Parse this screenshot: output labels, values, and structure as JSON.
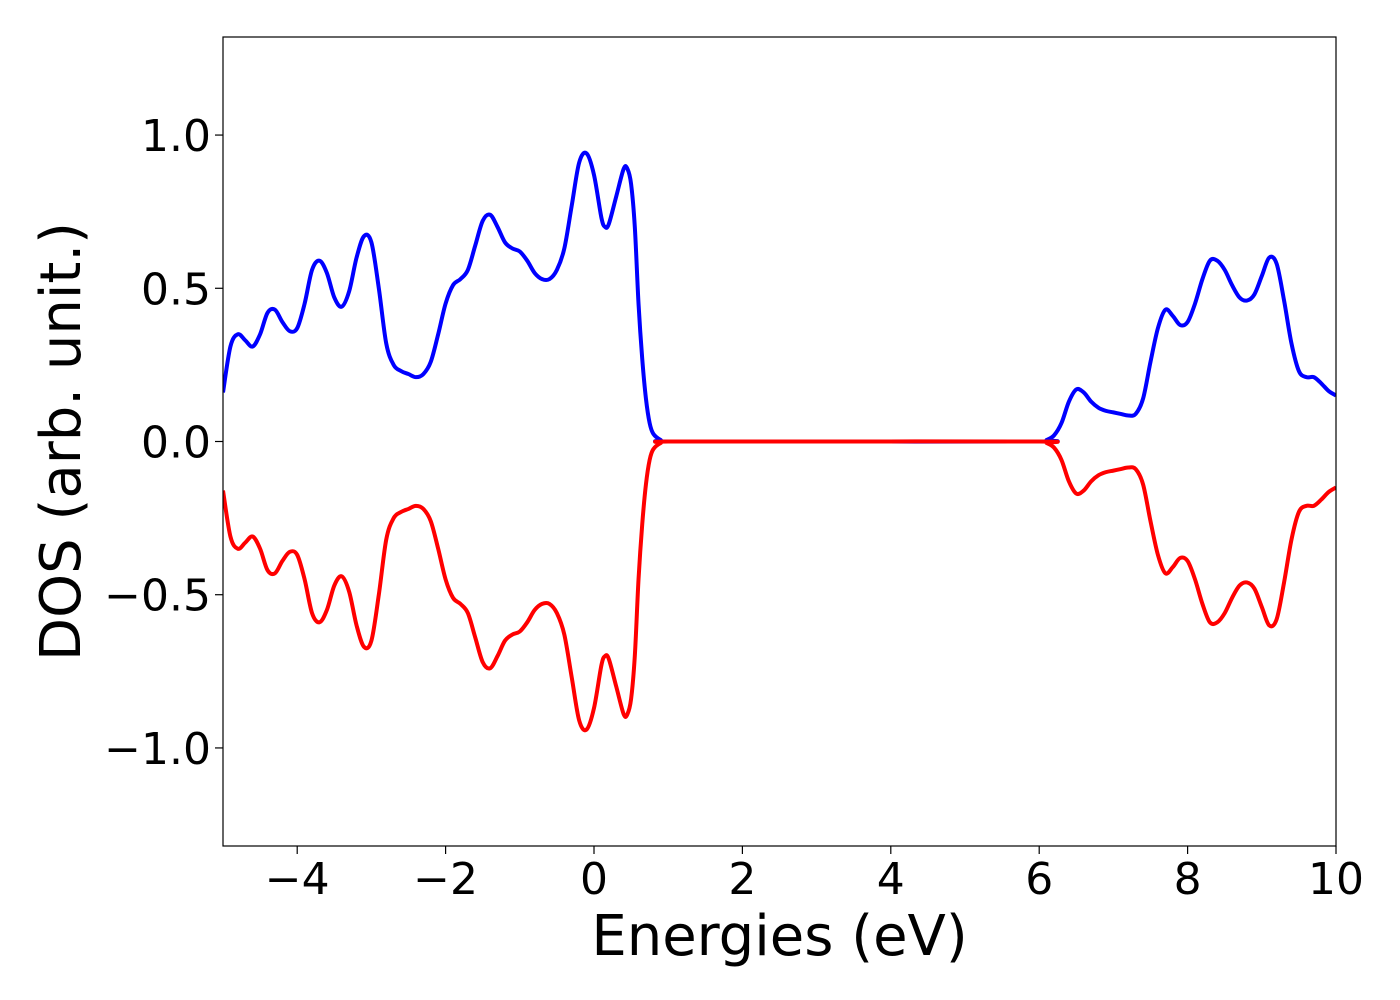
{
  "chart_data": {
    "type": "line",
    "title": "",
    "xlabel": "Energies (eV)",
    "ylabel": "DOS (arb. unit.)",
    "xlim": [
      -5,
      10
    ],
    "ylim": [
      -1.32,
      1.32
    ],
    "x_ticks": [
      -4,
      -2,
      0,
      2,
      4,
      6,
      8,
      10
    ],
    "x_tick_labels": [
      "−4",
      "−2",
      "0",
      "2",
      "4",
      "6",
      "8",
      "10"
    ],
    "y_ticks": [
      1.0,
      0.5,
      0.0,
      -0.5,
      -1.0
    ],
    "y_tick_labels": [
      "1.0",
      "0.5",
      "0.0",
      "−0.5",
      "−1.0"
    ],
    "grid": false,
    "legend": "none",
    "series": [
      {
        "color": "#0000ff",
        "points": [
          [
            -5.0,
            0.16
          ],
          [
            -4.9,
            0.31
          ],
          [
            -4.8,
            0.35
          ],
          [
            -4.7,
            0.33
          ],
          [
            -4.6,
            0.31
          ],
          [
            -4.5,
            0.35
          ],
          [
            -4.4,
            0.42
          ],
          [
            -4.3,
            0.43
          ],
          [
            -4.2,
            0.39
          ],
          [
            -4.1,
            0.36
          ],
          [
            -4.0,
            0.37
          ],
          [
            -3.9,
            0.45
          ],
          [
            -3.8,
            0.56
          ],
          [
            -3.7,
            0.59
          ],
          [
            -3.6,
            0.55
          ],
          [
            -3.5,
            0.47
          ],
          [
            -3.4,
            0.44
          ],
          [
            -3.3,
            0.49
          ],
          [
            -3.2,
            0.6
          ],
          [
            -3.1,
            0.67
          ],
          [
            -3.0,
            0.65
          ],
          [
            -2.9,
            0.5
          ],
          [
            -2.8,
            0.32
          ],
          [
            -2.7,
            0.25
          ],
          [
            -2.6,
            0.23
          ],
          [
            -2.5,
            0.22
          ],
          [
            -2.4,
            0.21
          ],
          [
            -2.3,
            0.22
          ],
          [
            -2.2,
            0.26
          ],
          [
            -2.1,
            0.35
          ],
          [
            -2.0,
            0.45
          ],
          [
            -1.9,
            0.51
          ],
          [
            -1.8,
            0.53
          ],
          [
            -1.7,
            0.56
          ],
          [
            -1.6,
            0.64
          ],
          [
            -1.5,
            0.72
          ],
          [
            -1.4,
            0.74
          ],
          [
            -1.3,
            0.7
          ],
          [
            -1.2,
            0.65
          ],
          [
            -1.1,
            0.63
          ],
          [
            -1.0,
            0.62
          ],
          [
            -0.9,
            0.59
          ],
          [
            -0.8,
            0.55
          ],
          [
            -0.7,
            0.53
          ],
          [
            -0.6,
            0.53
          ],
          [
            -0.5,
            0.56
          ],
          [
            -0.4,
            0.63
          ],
          [
            -0.3,
            0.77
          ],
          [
            -0.2,
            0.91
          ],
          [
            -0.1,
            0.94
          ],
          [
            0.0,
            0.87
          ],
          [
            0.1,
            0.73
          ],
          [
            0.15,
            0.7
          ],
          [
            0.2,
            0.71
          ],
          [
            0.3,
            0.8
          ],
          [
            0.4,
            0.89
          ],
          [
            0.45,
            0.89
          ],
          [
            0.5,
            0.84
          ],
          [
            0.55,
            0.7
          ],
          [
            0.6,
            0.45
          ],
          [
            0.65,
            0.27
          ],
          [
            0.7,
            0.14
          ],
          [
            0.75,
            0.06
          ],
          [
            0.8,
            0.025
          ],
          [
            0.9,
            0.005
          ],
          [
            1.0,
            0.0
          ],
          [
            3.0,
            0.0
          ],
          [
            6.0,
            0.0
          ],
          [
            6.1,
            0.005
          ],
          [
            6.2,
            0.02
          ],
          [
            6.3,
            0.06
          ],
          [
            6.4,
            0.13
          ],
          [
            6.5,
            0.17
          ],
          [
            6.6,
            0.16
          ],
          [
            6.7,
            0.13
          ],
          [
            6.8,
            0.11
          ],
          [
            6.9,
            0.1
          ],
          [
            7.0,
            0.095
          ],
          [
            7.1,
            0.09
          ],
          [
            7.2,
            0.085
          ],
          [
            7.3,
            0.09
          ],
          [
            7.4,
            0.14
          ],
          [
            7.5,
            0.26
          ],
          [
            7.6,
            0.37
          ],
          [
            7.7,
            0.43
          ],
          [
            7.8,
            0.41
          ],
          [
            7.9,
            0.38
          ],
          [
            8.0,
            0.39
          ],
          [
            8.1,
            0.45
          ],
          [
            8.2,
            0.53
          ],
          [
            8.3,
            0.59
          ],
          [
            8.4,
            0.59
          ],
          [
            8.5,
            0.56
          ],
          [
            8.6,
            0.51
          ],
          [
            8.7,
            0.47
          ],
          [
            8.8,
            0.46
          ],
          [
            8.9,
            0.48
          ],
          [
            9.0,
            0.54
          ],
          [
            9.1,
            0.6
          ],
          [
            9.2,
            0.58
          ],
          [
            9.3,
            0.46
          ],
          [
            9.4,
            0.32
          ],
          [
            9.5,
            0.23
          ],
          [
            9.6,
            0.21
          ],
          [
            9.7,
            0.21
          ],
          [
            9.8,
            0.19
          ],
          [
            9.9,
            0.165
          ],
          [
            10.0,
            0.15
          ]
        ]
      },
      {
        "color": "#ff0000",
        "points": [
          [
            -5.0,
            -0.16
          ],
          [
            -4.9,
            -0.31
          ],
          [
            -4.8,
            -0.35
          ],
          [
            -4.7,
            -0.33
          ],
          [
            -4.6,
            -0.31
          ],
          [
            -4.5,
            -0.35
          ],
          [
            -4.4,
            -0.42
          ],
          [
            -4.3,
            -0.43
          ],
          [
            -4.2,
            -0.39
          ],
          [
            -4.1,
            -0.36
          ],
          [
            -4.0,
            -0.37
          ],
          [
            -3.9,
            -0.45
          ],
          [
            -3.8,
            -0.56
          ],
          [
            -3.7,
            -0.59
          ],
          [
            -3.6,
            -0.55
          ],
          [
            -3.5,
            -0.47
          ],
          [
            -3.4,
            -0.44
          ],
          [
            -3.3,
            -0.49
          ],
          [
            -3.2,
            -0.6
          ],
          [
            -3.1,
            -0.67
          ],
          [
            -3.0,
            -0.65
          ],
          [
            -2.9,
            -0.5
          ],
          [
            -2.8,
            -0.32
          ],
          [
            -2.7,
            -0.25
          ],
          [
            -2.6,
            -0.23
          ],
          [
            -2.5,
            -0.22
          ],
          [
            -2.4,
            -0.21
          ],
          [
            -2.3,
            -0.22
          ],
          [
            -2.2,
            -0.26
          ],
          [
            -2.1,
            -0.35
          ],
          [
            -2.0,
            -0.45
          ],
          [
            -1.9,
            -0.51
          ],
          [
            -1.8,
            -0.53
          ],
          [
            -1.7,
            -0.56
          ],
          [
            -1.6,
            -0.64
          ],
          [
            -1.5,
            -0.72
          ],
          [
            -1.4,
            -0.74
          ],
          [
            -1.3,
            -0.7
          ],
          [
            -1.2,
            -0.65
          ],
          [
            -1.1,
            -0.63
          ],
          [
            -1.0,
            -0.62
          ],
          [
            -0.9,
            -0.59
          ],
          [
            -0.8,
            -0.55
          ],
          [
            -0.7,
            -0.53
          ],
          [
            -0.6,
            -0.53
          ],
          [
            -0.5,
            -0.56
          ],
          [
            -0.4,
            -0.63
          ],
          [
            -0.3,
            -0.77
          ],
          [
            -0.2,
            -0.91
          ],
          [
            -0.1,
            -0.94
          ],
          [
            0.0,
            -0.87
          ],
          [
            0.1,
            -0.73
          ],
          [
            0.15,
            -0.7
          ],
          [
            0.2,
            -0.71
          ],
          [
            0.3,
            -0.8
          ],
          [
            0.4,
            -0.89
          ],
          [
            0.45,
            -0.89
          ],
          [
            0.5,
            -0.84
          ],
          [
            0.55,
            -0.7
          ],
          [
            0.6,
            -0.45
          ],
          [
            0.65,
            -0.27
          ],
          [
            0.7,
            -0.14
          ],
          [
            0.75,
            -0.06
          ],
          [
            0.8,
            -0.025
          ],
          [
            0.9,
            -0.005
          ],
          [
            1.0,
            0.0
          ],
          [
            3.0,
            0.0
          ],
          [
            6.0,
            0.0
          ],
          [
            6.1,
            -0.005
          ],
          [
            6.2,
            -0.02
          ],
          [
            6.3,
            -0.06
          ],
          [
            6.4,
            -0.13
          ],
          [
            6.5,
            -0.17
          ],
          [
            6.6,
            -0.16
          ],
          [
            6.7,
            -0.13
          ],
          [
            6.8,
            -0.11
          ],
          [
            6.9,
            -0.1
          ],
          [
            7.0,
            -0.095
          ],
          [
            7.1,
            -0.09
          ],
          [
            7.2,
            -0.085
          ],
          [
            7.3,
            -0.09
          ],
          [
            7.4,
            -0.14
          ],
          [
            7.5,
            -0.26
          ],
          [
            7.6,
            -0.37
          ],
          [
            7.7,
            -0.43
          ],
          [
            7.8,
            -0.41
          ],
          [
            7.9,
            -0.38
          ],
          [
            8.0,
            -0.39
          ],
          [
            8.1,
            -0.45
          ],
          [
            8.2,
            -0.53
          ],
          [
            8.3,
            -0.59
          ],
          [
            8.4,
            -0.59
          ],
          [
            8.5,
            -0.56
          ],
          [
            8.6,
            -0.51
          ],
          [
            8.7,
            -0.47
          ],
          [
            8.8,
            -0.46
          ],
          [
            8.9,
            -0.48
          ],
          [
            9.0,
            -0.54
          ],
          [
            9.1,
            -0.6
          ],
          [
            9.2,
            -0.58
          ],
          [
            9.3,
            -0.46
          ],
          [
            9.4,
            -0.32
          ],
          [
            9.5,
            -0.23
          ],
          [
            9.6,
            -0.21
          ],
          [
            9.7,
            -0.21
          ],
          [
            9.8,
            -0.19
          ],
          [
            9.9,
            -0.165
          ],
          [
            10.0,
            -0.15
          ]
        ]
      }
    ]
  }
}
